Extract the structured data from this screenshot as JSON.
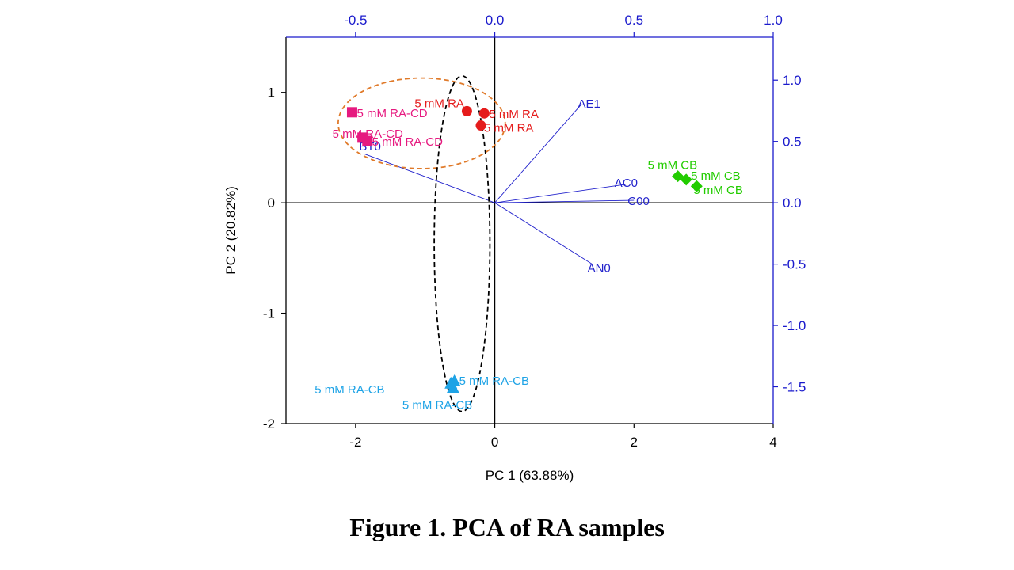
{
  "caption": "Figure 1. PCA of RA samples",
  "chart_data": {
    "type": "scatter",
    "xlabel": "PC 1 (63.88%)",
    "ylabel": "PC 2 (20.82%)",
    "xlim": [
      -3,
      4
    ],
    "ylim": [
      -2,
      1.5
    ],
    "x_ticks": [
      -2,
      0,
      2,
      4
    ],
    "y_ticks": [
      -2,
      -1,
      0,
      1
    ],
    "top_axis": {
      "lim": [
        -0.75,
        1.0
      ],
      "ticks": [
        -0.5,
        0.0,
        0.5,
        1.0
      ],
      "tick_labels": [
        "-0.5",
        "0.0",
        "0.5",
        "1.0"
      ],
      "color": "#1a1acc"
    },
    "right_axis": {
      "lim": [
        -1.8,
        1.35
      ],
      "ticks": [
        1.0,
        0.5,
        0.0,
        -0.5,
        -1.0,
        -1.5
      ],
      "tick_labels": [
        "1.0",
        "0.5",
        "0.0",
        "-0.5",
        "-1.0",
        "-1.5"
      ],
      "color": "#1a1acc"
    },
    "series": [
      {
        "marker": "square",
        "color": "#e6197f",
        "points": [
          {
            "x": -2.05,
            "y": 0.82,
            "label": "5 mM RA-CD"
          },
          {
            "x": -1.9,
            "y": 0.59,
            "label": "5 mM RA-CD"
          },
          {
            "x": -1.83,
            "y": 0.56,
            "label": "5 mM RA-CD"
          }
        ]
      },
      {
        "marker": "circle",
        "color": "#e51c1c",
        "points": [
          {
            "x": -0.4,
            "y": 0.83,
            "label": "5 mM RA"
          },
          {
            "x": -0.15,
            "y": 0.81,
            "label": "5 mM RA"
          },
          {
            "x": -0.2,
            "y": 0.7,
            "label": "5 mM RA"
          }
        ]
      },
      {
        "marker": "diamond",
        "color": "#22cc00",
        "points": [
          {
            "x": 2.63,
            "y": 0.24,
            "label": "5 mM CB"
          },
          {
            "x": 2.75,
            "y": 0.21,
            "label": "5 mM CB"
          },
          {
            "x": 2.9,
            "y": 0.15,
            "label": "5 mM CB"
          }
        ]
      },
      {
        "marker": "triangle",
        "color": "#1ea3e6",
        "points": [
          {
            "x": -0.58,
            "y": -1.62,
            "label": "5 mM RA-CB"
          },
          {
            "x": -0.63,
            "y": -1.64,
            "label": "5 mM RA-CB"
          },
          {
            "x": -0.6,
            "y": -1.68,
            "label": "5 mM RA-CB"
          }
        ]
      }
    ],
    "loadings": {
      "color": "#2222cc",
      "vectors": [
        {
          "name": "AE1",
          "x": 0.31,
          "y": 0.8
        },
        {
          "name": "BT0",
          "x": -0.47,
          "y": 0.4
        },
        {
          "name": "AC0",
          "x": 0.47,
          "y": 0.15
        },
        {
          "name": "C00",
          "x": 0.5,
          "y": 0.02
        },
        {
          "name": "AN0",
          "x": 0.35,
          "y": -0.5
        }
      ]
    },
    "ellipses": [
      {
        "cx": -1.05,
        "cy": 0.72,
        "rx": 1.2,
        "ry": 0.41,
        "color": "#e07a2a",
        "style": "dashed"
      },
      {
        "cx": -0.47,
        "cy": -0.37,
        "rx": 0.4,
        "ry": 1.52,
        "color": "#000000",
        "style": "dashed"
      }
    ]
  }
}
